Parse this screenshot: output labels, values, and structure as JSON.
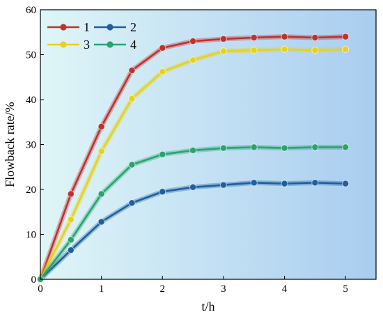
{
  "chart_data": {
    "type": "line",
    "xlabel": "t/h",
    "ylabel": "Flowback rate/%",
    "xlim": [
      0,
      5.5
    ],
    "ylim": [
      0,
      60
    ],
    "xticks": [
      0,
      1,
      2,
      3,
      4,
      5
    ],
    "yticks": [
      0,
      10,
      20,
      30,
      40,
      50,
      60
    ],
    "grid": false,
    "legend_position": "top-left",
    "background": "gradient light-cyan to light-blue",
    "x": [
      0,
      0.5,
      1,
      1.5,
      2,
      2.5,
      3,
      3.5,
      4,
      4.5,
      5
    ],
    "series": [
      {
        "name": "1",
        "color": "#c0312b",
        "values": [
          0,
          19,
          34,
          46.5,
          51.5,
          53,
          53.5,
          53.8,
          54,
          53.8,
          54
        ]
      },
      {
        "name": "2",
        "color": "#1f5f9e",
        "values": [
          0,
          6.5,
          12.8,
          17,
          19.5,
          20.5,
          21,
          21.5,
          21.3,
          21.5,
          21.3
        ]
      },
      {
        "name": "3",
        "color": "#e6d21c",
        "values": [
          0,
          13.3,
          28.5,
          40.2,
          46.2,
          48.8,
          50.8,
          51,
          51.2,
          51,
          51.2
        ]
      },
      {
        "name": "4",
        "color": "#2aa36e",
        "values": [
          0,
          8.8,
          19,
          25.5,
          27.8,
          28.7,
          29.2,
          29.4,
          29.2,
          29.4,
          29.4
        ]
      }
    ]
  }
}
